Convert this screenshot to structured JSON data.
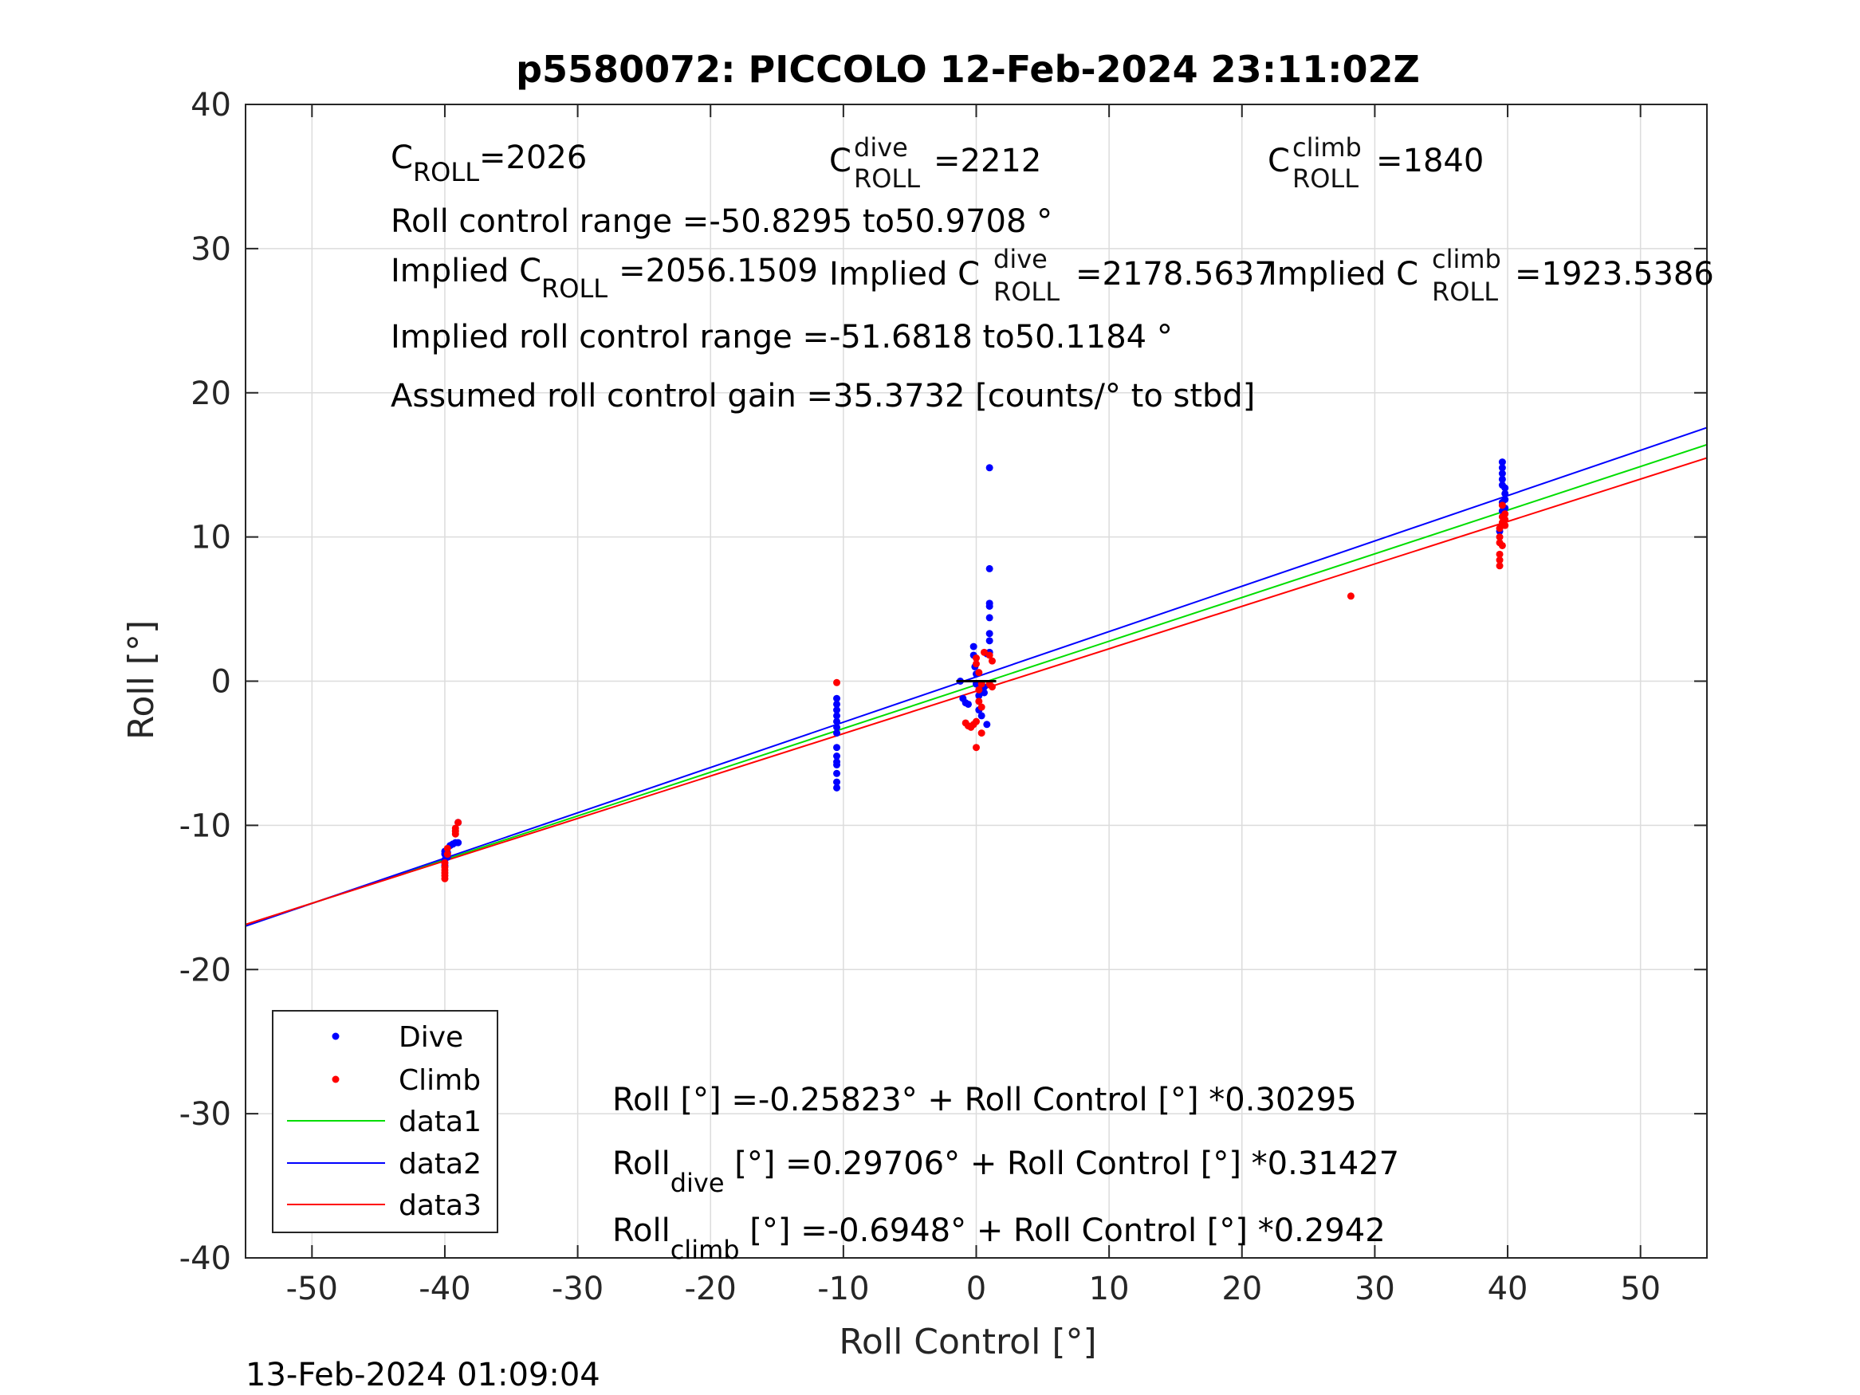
{
  "chart_data": {
    "type": "scatter",
    "title": "p5580072: PICCOLO 12-Feb-2024 23:11:02Z",
    "xlabel": "Roll Control [°]",
    "ylabel": "Roll [°]",
    "xlim": [
      -55,
      55
    ],
    "ylim": [
      -40,
      40
    ],
    "xticks": [
      "-50",
      "-40",
      "-30",
      "-20",
      "-10",
      "0",
      "10",
      "20",
      "30",
      "40",
      "50"
    ],
    "yticks": [
      "40",
      "30",
      "20",
      "10",
      "0",
      "-10",
      "-20",
      "-30",
      "-40"
    ],
    "grid": true,
    "legend_position": "bottom-left",
    "timestamp": "13-Feb-2024 01:09:04",
    "colors": {
      "dive": "#0000ff",
      "climb": "#ff0000",
      "data1": "#00dd00",
      "data2": "#0000ff",
      "data3": "#ff0000"
    },
    "series": [
      {
        "name": "Dive",
        "kind": "points",
        "color": "#0000ff",
        "points": [
          [
            -40,
            -12.4
          ],
          [
            -40,
            -12.0
          ],
          [
            -40,
            -11.8
          ],
          [
            -40,
            -12.6
          ],
          [
            -39.8,
            -12.2
          ],
          [
            -39.6,
            -11.4
          ],
          [
            -39.4,
            -11.3
          ],
          [
            -39.2,
            -11.2
          ],
          [
            -39,
            -11.2
          ],
          [
            -39,
            -9.8
          ],
          [
            -39.8,
            -11.9
          ],
          [
            -40,
            -12.8
          ],
          [
            -10.5,
            -1.2
          ],
          [
            -10.5,
            -1.6
          ],
          [
            -10.5,
            -2.0
          ],
          [
            -10.5,
            -2.4
          ],
          [
            -10.5,
            -2.8
          ],
          [
            -10.5,
            -3.2
          ],
          [
            -10.5,
            -3.6
          ],
          [
            -10.5,
            -4.6
          ],
          [
            -10.5,
            -5.2
          ],
          [
            -10.5,
            -5.6
          ],
          [
            -10.5,
            -5.8
          ],
          [
            -10.5,
            -6.4
          ],
          [
            -10.5,
            -7.0
          ],
          [
            -10.5,
            -7.4
          ],
          [
            -1.2,
            0.0
          ],
          [
            -1.0,
            -1.2
          ],
          [
            -0.8,
            -1.5
          ],
          [
            -0.6,
            -1.6
          ],
          [
            -0.2,
            2.4
          ],
          [
            -0.2,
            1.8
          ],
          [
            -0.1,
            1.0
          ],
          [
            0,
            0.5
          ],
          [
            0,
            -0.2
          ],
          [
            0.2,
            -1.0
          ],
          [
            0.2,
            -2.0
          ],
          [
            0.4,
            -2.4
          ],
          [
            0.6,
            -0.4
          ],
          [
            0.6,
            -0.8
          ],
          [
            0.8,
            1.9
          ],
          [
            0.8,
            -3.0
          ],
          [
            1.0,
            14.8
          ],
          [
            1.0,
            7.8
          ],
          [
            1.0,
            5.4
          ],
          [
            1.0,
            5.2
          ],
          [
            1.0,
            4.4
          ],
          [
            1.0,
            3.3
          ],
          [
            1.0,
            2.8
          ],
          [
            1.0,
            2.0
          ],
          [
            39.6,
            15.2
          ],
          [
            39.6,
            14.8
          ],
          [
            39.6,
            14.4
          ],
          [
            39.6,
            14.0
          ],
          [
            39.6,
            13.6
          ],
          [
            39.8,
            13.4
          ],
          [
            39.8,
            13.0
          ],
          [
            39.8,
            12.6
          ],
          [
            39.6,
            12.4
          ],
          [
            39.6,
            11.8
          ],
          [
            39.4,
            10.4
          ],
          [
            39.8,
            12.0
          ]
        ]
      },
      {
        "name": "Climb",
        "kind": "points",
        "color": "#ff0000",
        "points": [
          [
            -40,
            -12.6
          ],
          [
            -40,
            -12.9
          ],
          [
            -40,
            -13.1
          ],
          [
            -40,
            -13.3
          ],
          [
            -40,
            -13.5
          ],
          [
            -40,
            -13.7
          ],
          [
            -39.8,
            -11.6
          ],
          [
            -39.8,
            -12.0
          ],
          [
            -39.2,
            -10.6
          ],
          [
            -39.2,
            -10.2
          ],
          [
            -39,
            -9.8
          ],
          [
            -39.2,
            -10.4
          ],
          [
            -10.5,
            -0.1
          ],
          [
            -0.8,
            -2.9
          ],
          [
            -0.6,
            -3.1
          ],
          [
            -0.4,
            -3.2
          ],
          [
            -0.2,
            -3.0
          ],
          [
            0,
            -2.8
          ],
          [
            0,
            1.6
          ],
          [
            0,
            1.2
          ],
          [
            0.2,
            0.6
          ],
          [
            0.2,
            -0.6
          ],
          [
            0.2,
            -1.4
          ],
          [
            0.4,
            -1.8
          ],
          [
            0,
            -4.6
          ],
          [
            0.4,
            -3.6
          ],
          [
            0.6,
            2.0
          ],
          [
            1.0,
            1.8
          ],
          [
            1.2,
            1.4
          ],
          [
            1.0,
            -0.2
          ],
          [
            1.2,
            -0.4
          ],
          [
            0.4,
            -0.2
          ],
          [
            28.2,
            5.9
          ],
          [
            39.4,
            8.0
          ],
          [
            39.4,
            8.4
          ],
          [
            39.4,
            8.8
          ],
          [
            39.6,
            9.4
          ],
          [
            39.4,
            10.0
          ],
          [
            39.4,
            10.6
          ],
          [
            39.6,
            11.0
          ],
          [
            39.6,
            11.4
          ],
          [
            39.8,
            11.2
          ],
          [
            39.8,
            10.8
          ],
          [
            39.6,
            12.2
          ],
          [
            39.8,
            11.6
          ],
          [
            39.4,
            9.6
          ]
        ]
      },
      {
        "name": "data1",
        "kind": "line",
        "color": "#00dd00",
        "intercept": -0.25823,
        "slope": 0.30295
      },
      {
        "name": "data2",
        "kind": "line",
        "color": "#0000ff",
        "intercept": 0.29706,
        "slope": 0.31427
      },
      {
        "name": "data3",
        "kind": "line",
        "color": "#ff0000",
        "intercept": -0.6948,
        "slope": 0.2942
      }
    ],
    "annotations": {
      "c_roll": {
        "base": "C",
        "sub": "ROLL",
        "value": "=2026"
      },
      "c_roll_dive": {
        "base": "C",
        "sup": "dive",
        "sub": "ROLL",
        "value": "=2212"
      },
      "c_roll_climb": {
        "base": "C",
        "sup": "climb",
        "sub": "ROLL",
        "value": "=1840"
      },
      "roll_control_range": "Roll control range =-50.8295 to50.9708 °",
      "implied_c_roll": {
        "prefix": "Implied C",
        "sub": "ROLL",
        "value": "=2056.1509"
      },
      "implied_c_roll_dive": {
        "prefix": "Implied C",
        "sup": "dive",
        "sub": "ROLL",
        "value": "=2178.5637"
      },
      "implied_c_roll_climb": {
        "prefix": "Implied C",
        "sup": "climb",
        "sub": "ROLL",
        "value": "=1923.5386"
      },
      "implied_range": "Implied roll control range =-51.6818 to50.1184 °",
      "gain": "Assumed roll control gain =35.3732 [counts/° to stbd]",
      "fit_all": "Roll [°] =-0.25823° + Roll Control [°] *0.30295",
      "fit_dive": {
        "base": "Roll",
        "sub": "dive",
        "rest": " [°] =0.29706° + Roll Control [°] *0.31427"
      },
      "fit_climb": {
        "base": "Roll",
        "sub": "climb",
        "rest": " [°] =-0.6948° + Roll Control [°] *0.2942"
      }
    }
  }
}
